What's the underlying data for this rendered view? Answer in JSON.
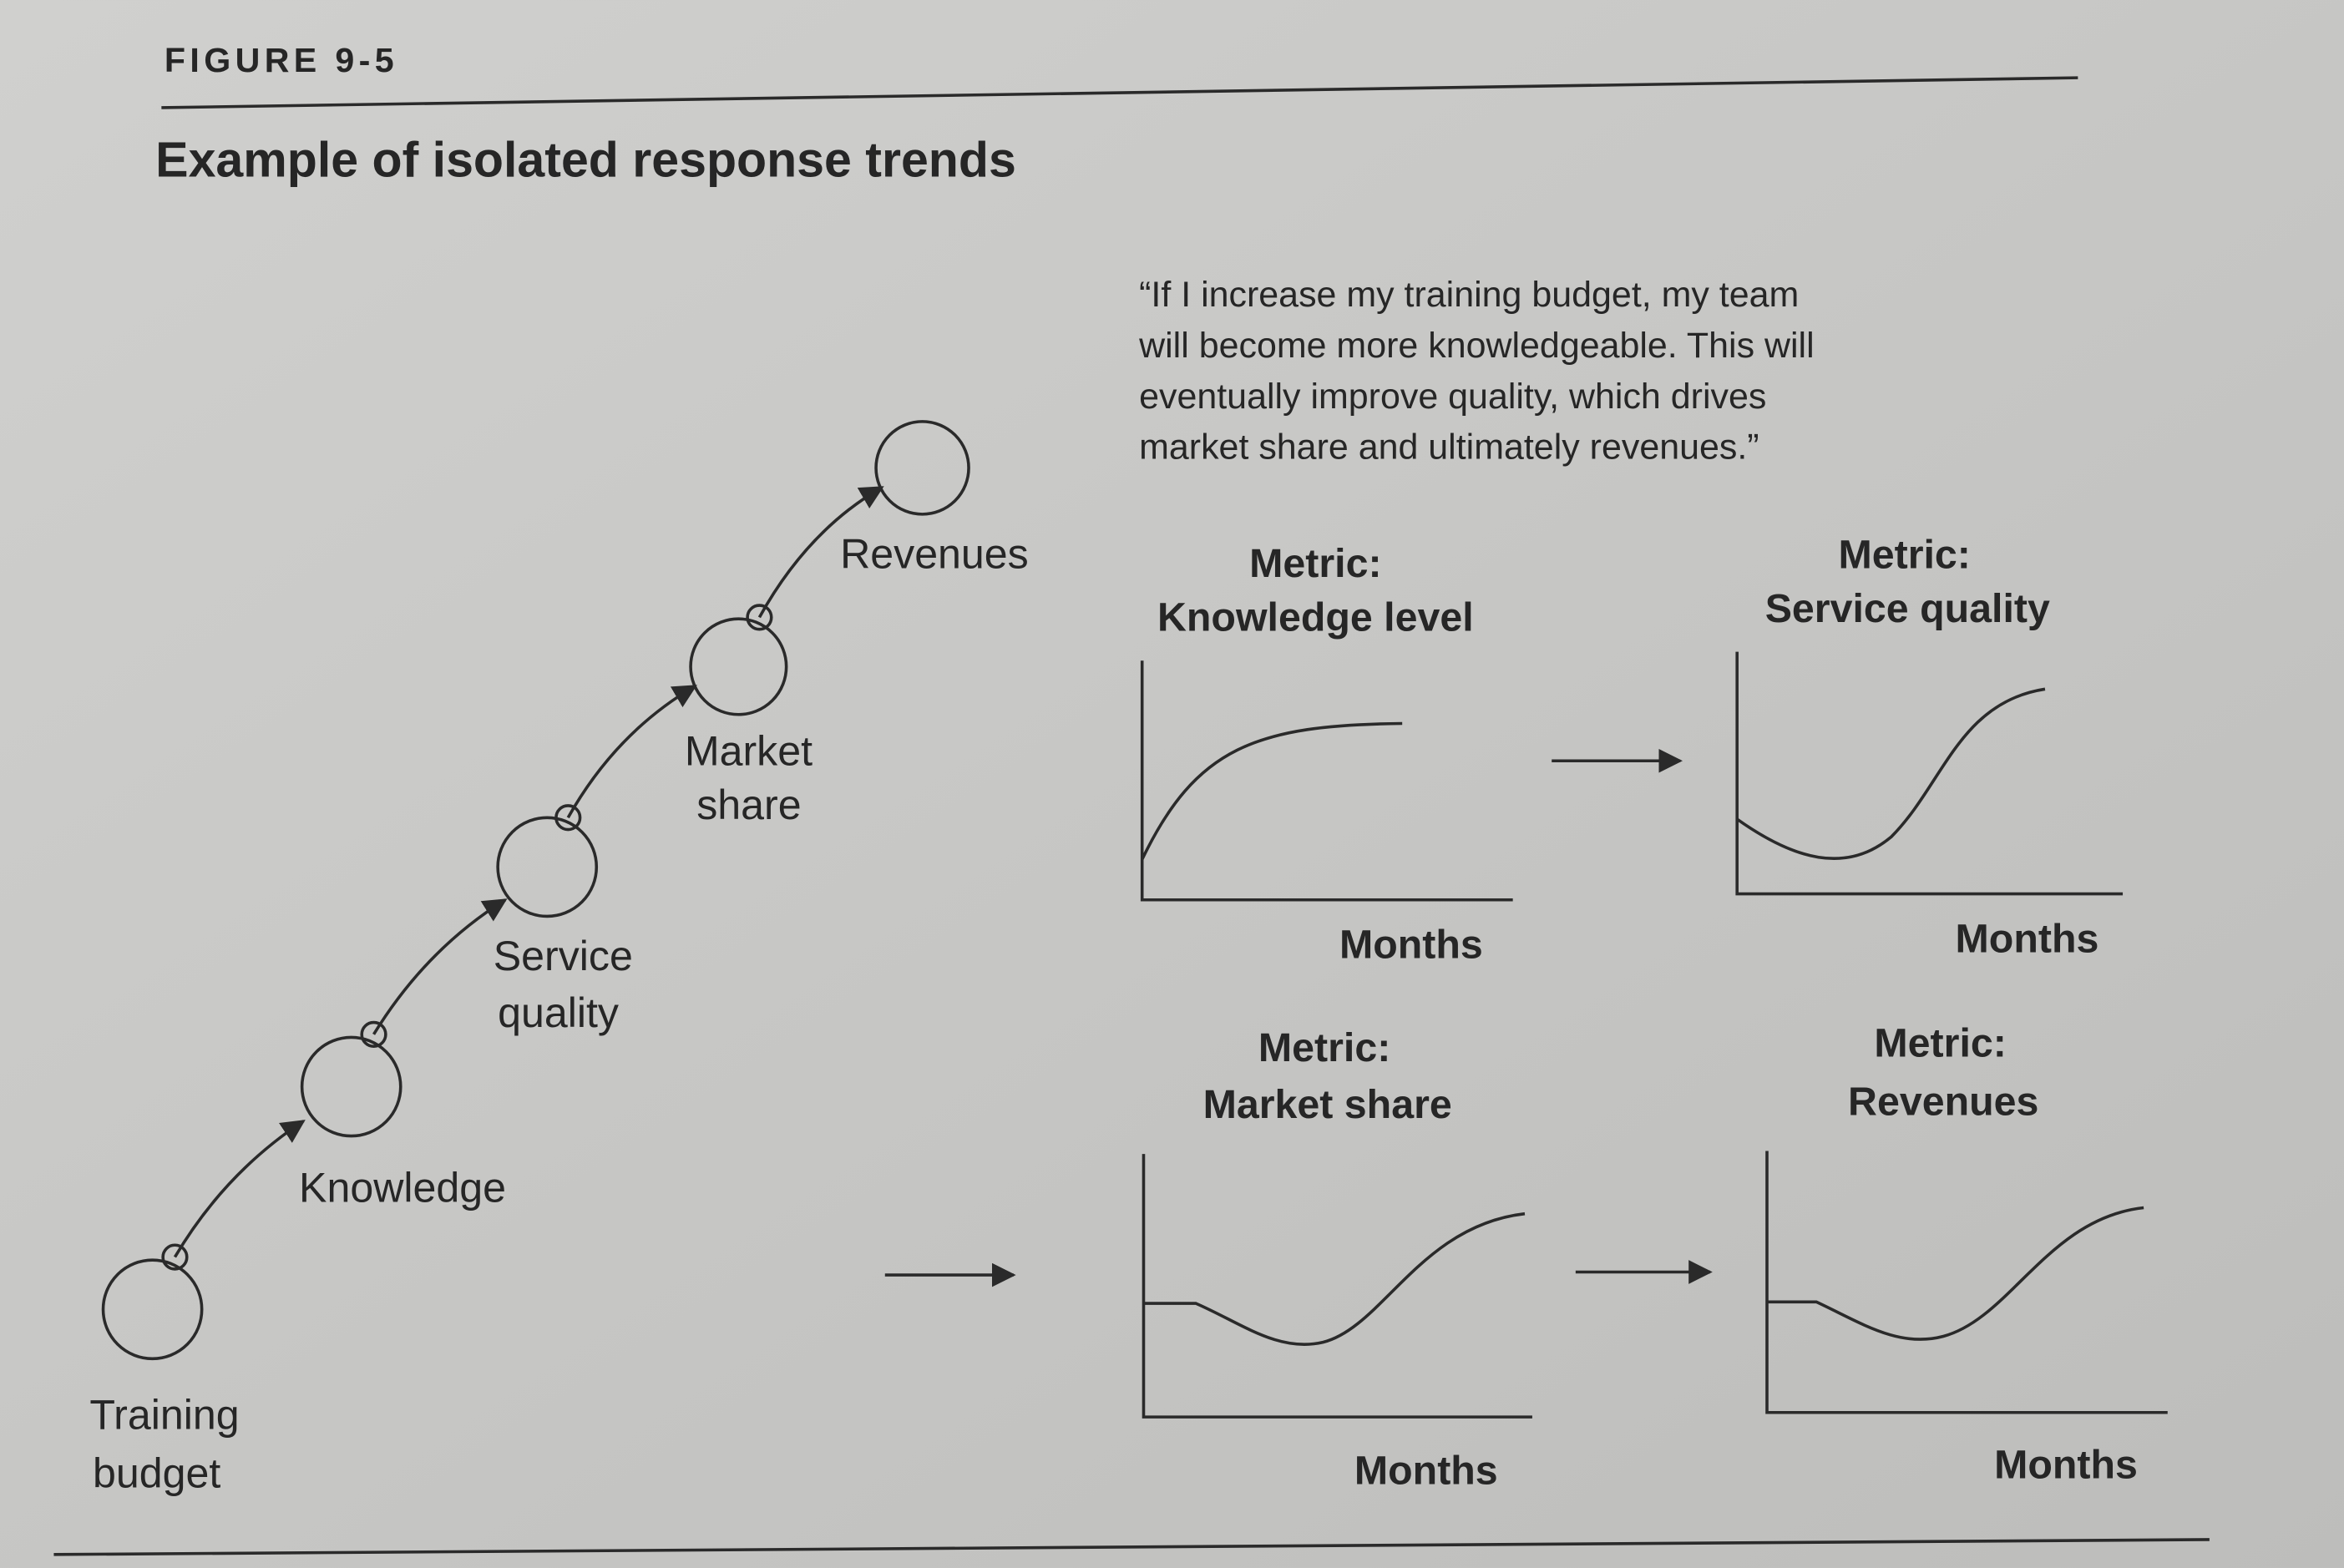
{
  "figure_label": "FIGURE 9-5",
  "title": "Example of isolated response trends",
  "quote": {
    "lines": [
      "“If I increase my training budget, my team",
      "will become more knowledgeable. This will",
      "eventually improve quality, which drives",
      "market share and ultimately revenues.”"
    ]
  },
  "chain": {
    "nodes": [
      {
        "label_lines": [
          "Training",
          "budget"
        ]
      },
      {
        "label_lines": [
          "Knowledge"
        ]
      },
      {
        "label_lines": [
          "Service",
          "quality"
        ]
      },
      {
        "label_lines": [
          "Market",
          "share"
        ]
      },
      {
        "label_lines": [
          "Revenues"
        ]
      }
    ]
  },
  "charts": [
    {
      "title_lines": [
        "Metric:",
        "Knowledge level"
      ],
      "xlabel": "Months",
      "shape": "rising-saturating"
    },
    {
      "title_lines": [
        "Metric:",
        "Service quality"
      ],
      "xlabel": "Months",
      "shape": "dip-then-rise"
    },
    {
      "title_lines": [
        "Metric:",
        "Market share"
      ],
      "xlabel": "Months",
      "shape": "flat-dip-then-rise"
    },
    {
      "title_lines": [
        "Metric:",
        "Revenues"
      ],
      "xlabel": "Months",
      "shape": "flat-dip-then-rise"
    }
  ],
  "colors": {
    "paper": "#c8c8c6",
    "ink": "#262626"
  }
}
